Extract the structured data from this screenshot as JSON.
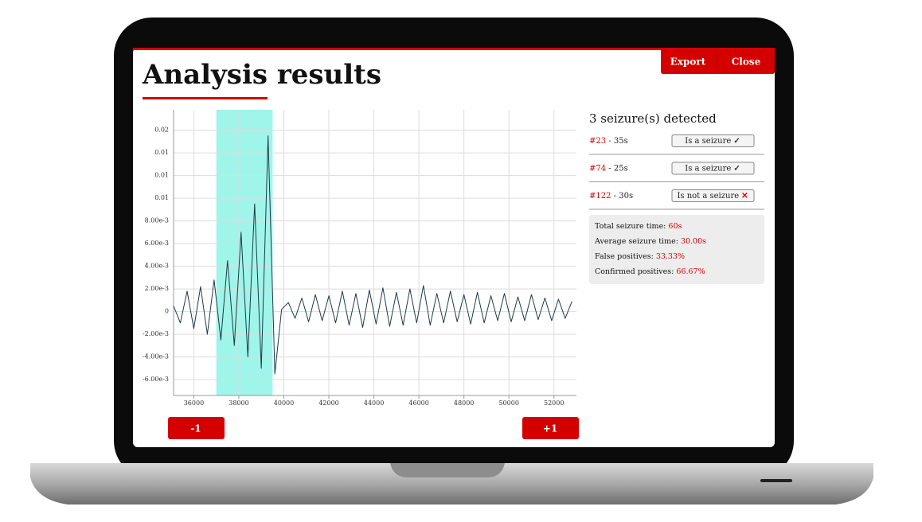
{
  "header": {
    "title": "Analysis results",
    "buttons": [
      "Export",
      "Close"
    ]
  },
  "chart_data": {
    "type": "line",
    "x": [
      35100,
      35400,
      35700,
      36000,
      36300,
      36600,
      36900,
      37200,
      37500,
      37800,
      38100,
      38400,
      38700,
      39000,
      39300,
      39600,
      39900,
      40200,
      40500,
      40800,
      41100,
      41400,
      41700,
      42000,
      42300,
      42600,
      42900,
      43200,
      43500,
      43800,
      44100,
      44400,
      44700,
      45000,
      45300,
      45600,
      45900,
      46200,
      46500,
      46800,
      47100,
      47400,
      47700,
      48000,
      48300,
      48600,
      48900,
      49200,
      49500,
      49800,
      50100,
      50400,
      50700,
      51000,
      51300,
      51600,
      51900,
      52200,
      52500,
      52800
    ],
    "series": [
      {
        "color": "#1c3b47",
        "values": [
          0.0005,
          -0.001,
          0.0018,
          -0.0015,
          0.0022,
          -0.002,
          0.0028,
          -0.0025,
          0.0045,
          -0.003,
          0.007,
          -0.004,
          0.0095,
          -0.005,
          0.0155,
          -0.0055,
          0.0002,
          0.0008,
          -0.0006,
          0.0012,
          -0.0009,
          0.0015,
          -0.0008,
          0.0014,
          -0.001,
          0.0018,
          -0.0012,
          0.0016,
          -0.0014,
          0.0019,
          -0.0011,
          0.0021,
          -0.0013,
          0.0017,
          -0.0012,
          0.002,
          -0.001,
          0.0023,
          -0.0012,
          0.0016,
          -0.001,
          0.0018,
          -0.0009,
          0.0015,
          -0.0011,
          0.0017,
          -0.001,
          0.0014,
          -0.0008,
          0.0016,
          -0.0009,
          0.0013,
          -0.0008,
          0.0015,
          -0.0007,
          0.0012,
          -0.0008,
          0.0011,
          -0.0006,
          0.0009
        ]
      }
    ],
    "highlight": [
      37000,
      39500
    ],
    "highlight_color": "#9ff5ea",
    "xlim": [
      35100,
      53000
    ],
    "xticks": [
      36000,
      38000,
      40000,
      42000,
      44000,
      46000,
      48000,
      50000,
      52000
    ],
    "ylim": [
      -0.0074,
      0.0178
    ],
    "yticks": [
      {
        "value": 0.016,
        "label": "0.02"
      },
      {
        "value": 0.014,
        "label": "0.01"
      },
      {
        "value": 0.012,
        "label": "0.01"
      },
      {
        "value": 0.01,
        "label": "0.01"
      },
      {
        "value": 0.008,
        "label": "8.00e-3"
      },
      {
        "value": 0.006,
        "label": "6.00e-3"
      },
      {
        "value": 0.004,
        "label": "4.00e-3"
      },
      {
        "value": 0.002,
        "label": "2.00e-3"
      },
      0,
      {
        "value": -0.002,
        "label": "-2.00e-3"
      },
      {
        "value": -0.004,
        "label": "-4.00e-3"
      },
      {
        "value": -0.006,
        "label": "-6.00e-3"
      }
    ],
    "grid": true
  },
  "navigation": [
    "-1",
    "+1"
  ],
  "results": {
    "heading": "3 seizure(s) detected",
    "items": [
      {
        "id": "#23",
        "separator": " - ",
        "duration": "35s",
        "verdict": "Is a seizure",
        "icon": "✓",
        "icon_color": "#333"
      },
      {
        "id": "#74",
        "separator": " - ",
        "duration": "25s",
        "verdict": "Is a seizure",
        "icon": "✓",
        "icon_color": "#333"
      },
      {
        "id": "#122",
        "separator": " - ",
        "duration": "30s",
        "verdict": "Is not a seizure",
        "icon": "✕",
        "icon_color": "#e00000"
      }
    ],
    "stats": [
      {
        "label": "Total seizure time: ",
        "value": "60s"
      },
      {
        "label": "Average seizure time: ",
        "value": "30.00s"
      },
      {
        "label": "False positives: ",
        "value": "33.33%"
      },
      {
        "label": "Confirmed positives: ",
        "value": "66.67%"
      }
    ]
  }
}
